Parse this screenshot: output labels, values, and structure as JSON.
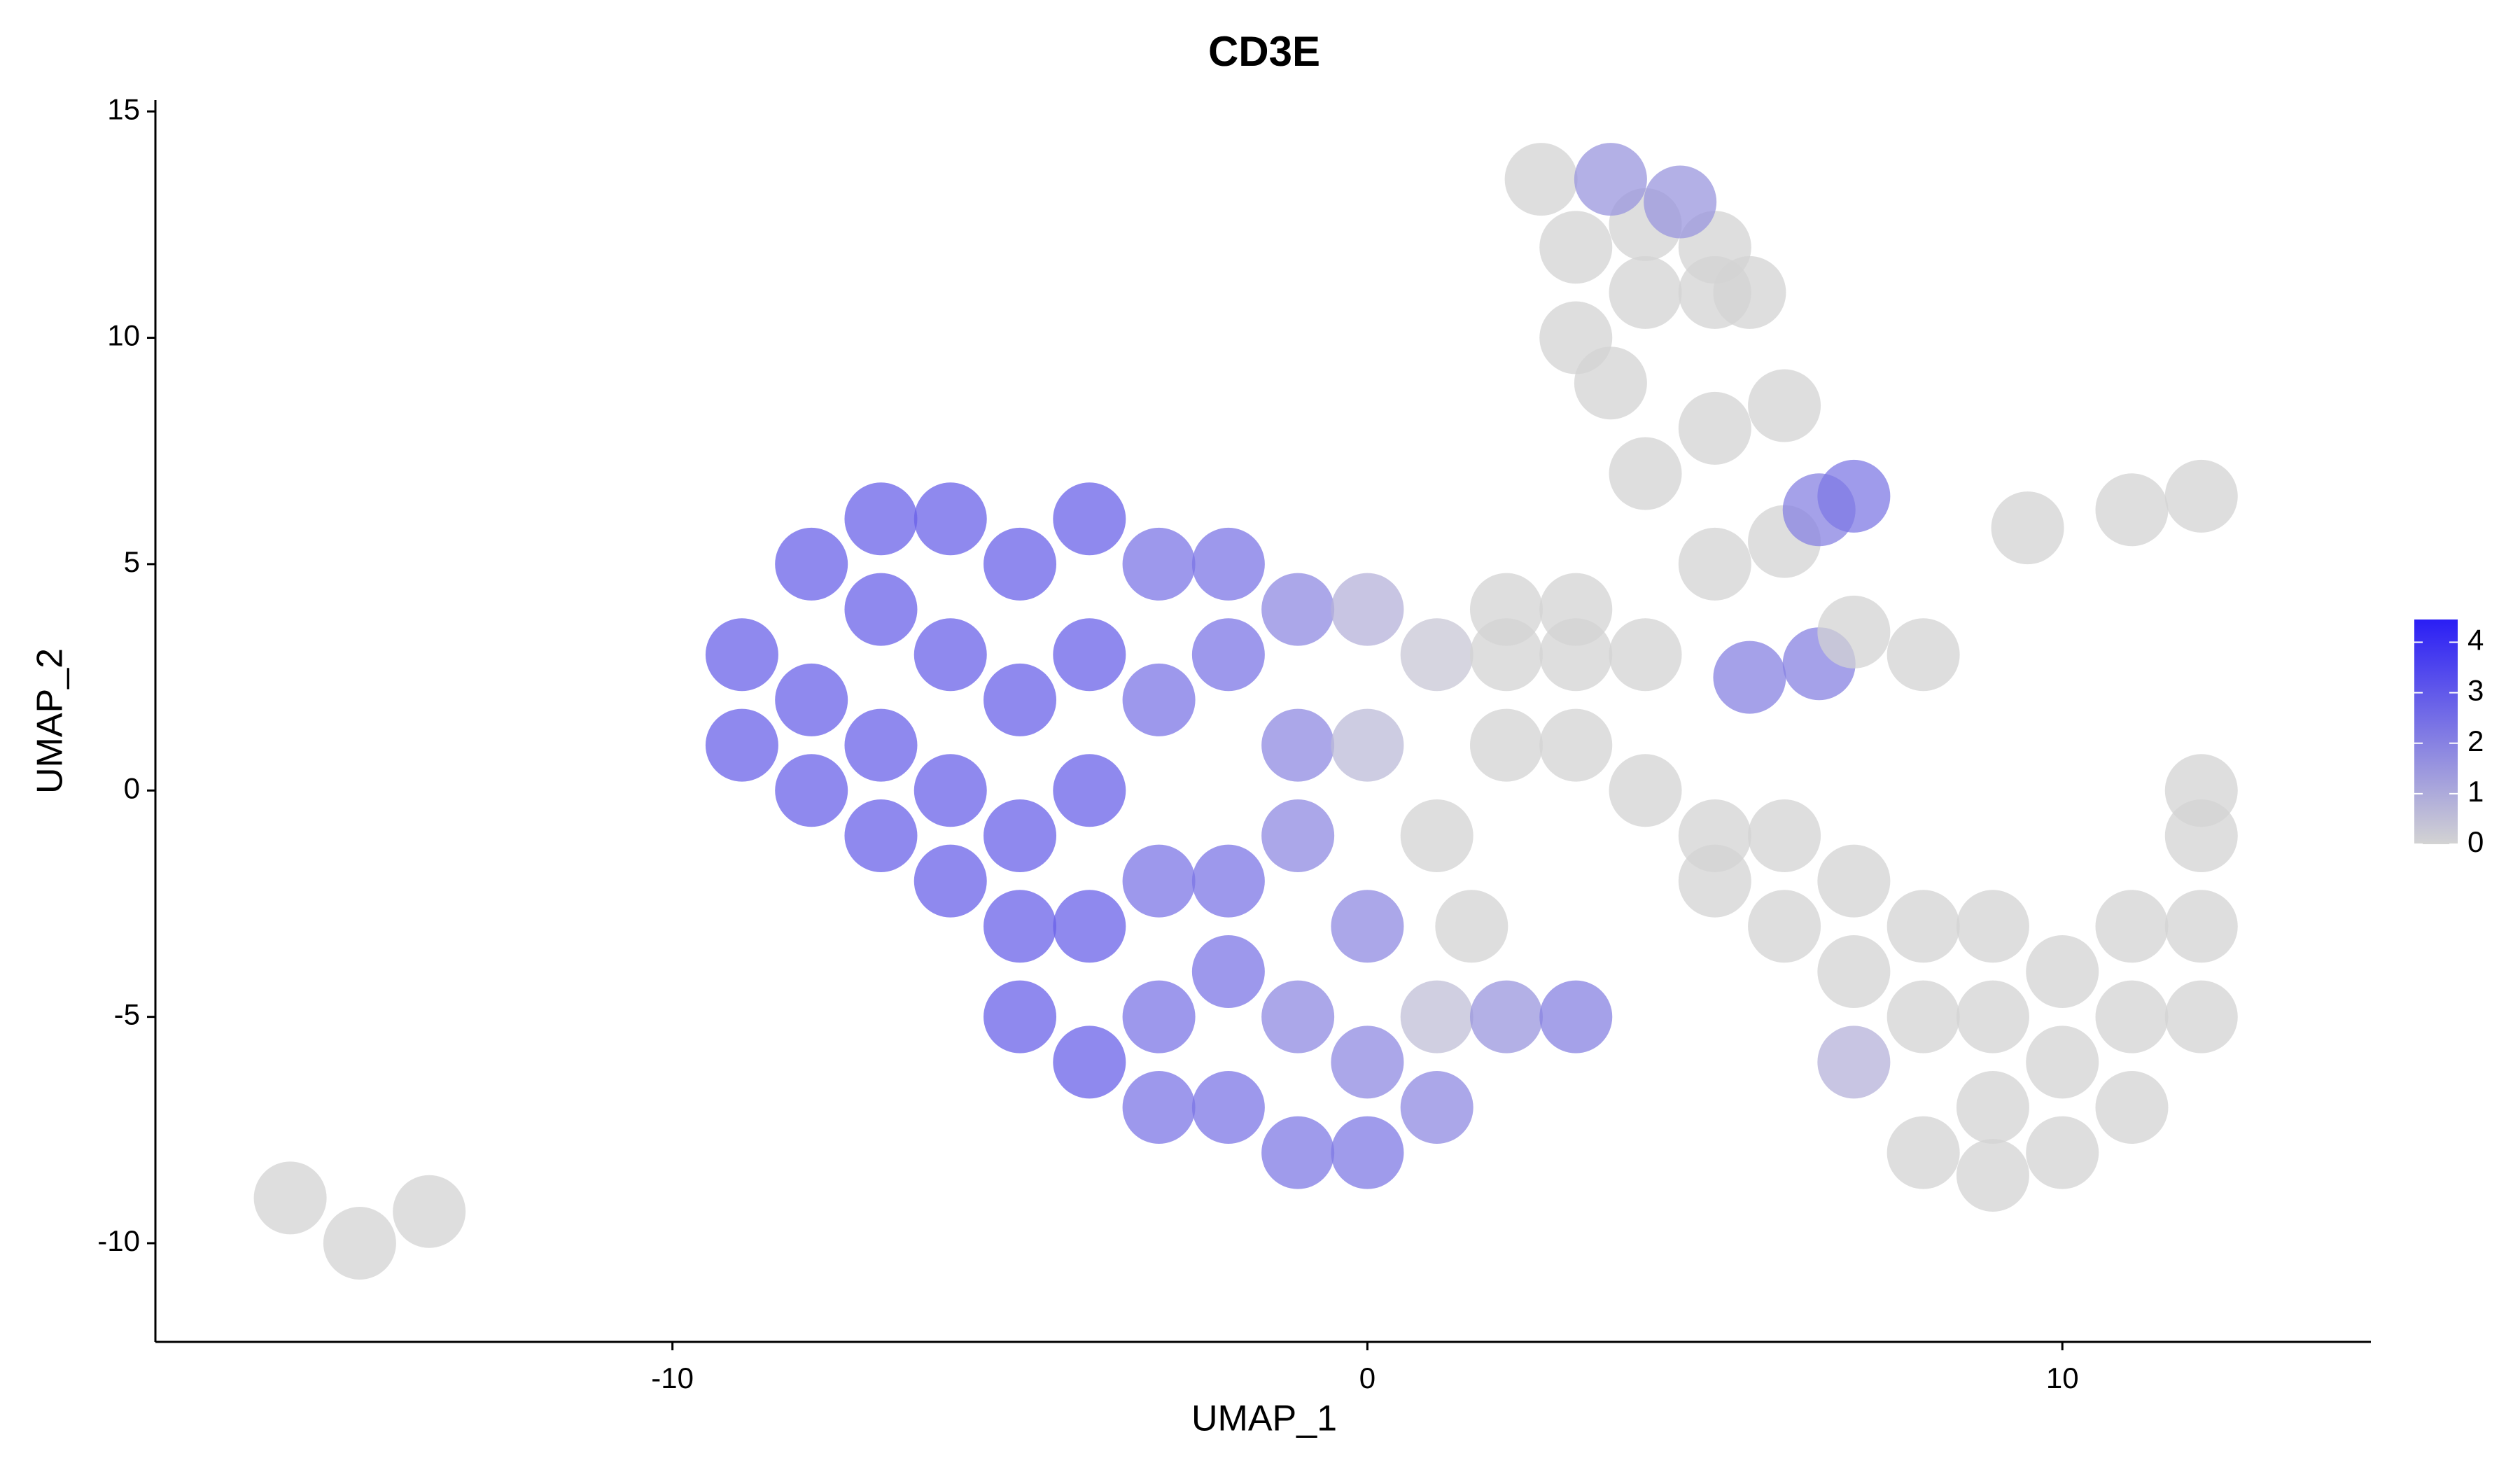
{
  "chart_data": {
    "type": "scatter",
    "title": "CD3E",
    "xlabel": "UMAP_1",
    "ylabel": "UMAP_2",
    "x": [
      -9,
      -9,
      -8,
      -8,
      -8,
      -7,
      -7,
      -7,
      -7,
      -6,
      -6,
      -6,
      -6,
      -5,
      -5,
      -5,
      -5,
      -5,
      -4,
      -4,
      -4,
      -4,
      -4,
      -3,
      -3,
      -3,
      -3,
      -3,
      -2,
      -2,
      -2,
      -2,
      -2,
      -1,
      -1,
      -1,
      -1,
      -1,
      0,
      0,
      0,
      0,
      0,
      1,
      1,
      1,
      1,
      2,
      2,
      3,
      2,
      3,
      3,
      4,
      2,
      3,
      1.5,
      4,
      5,
      5,
      6,
      6,
      7,
      7,
      8,
      8,
      9,
      9,
      9,
      10,
      10,
      10,
      11,
      11,
      11,
      12,
      12,
      12,
      8,
      7,
      9,
      12,
      2.5,
      3,
      3,
      3.5,
      4,
      4,
      5,
      5,
      3.5,
      4.5,
      5.5,
      4,
      5,
      6,
      5,
      6,
      9.5,
      11,
      12,
      6.5,
      7,
      5.5,
      6.5,
      7,
      8,
      -15.5,
      -14.5,
      -13.5
    ],
    "values": [
      1,
      3,
      5,
      2,
      0,
      6,
      4,
      1,
      -1,
      6,
      3,
      0,
      -2,
      5,
      2,
      -1,
      -3,
      -5,
      6,
      3,
      0,
      -3,
      -6,
      5,
      2,
      -2,
      -5,
      -7,
      5,
      3,
      -2,
      -4,
      -7,
      4,
      1,
      -1,
      -5,
      -8,
      4,
      1,
      -3,
      -6,
      -8,
      3,
      -1,
      -5,
      -7,
      3,
      -5,
      -5,
      4,
      4,
      3,
      3,
      1,
      1,
      -3,
      0,
      -1,
      -2,
      -1,
      -3,
      -2,
      -4,
      -3,
      -5,
      -3,
      -5,
      -7,
      -4,
      -6,
      -8,
      -3,
      -5,
      -7,
      -1,
      -3,
      -5,
      -8,
      -6,
      -8.5,
      0,
      13.5,
      12,
      10,
      9,
      12.5,
      11,
      12,
      11,
      13.5,
      13,
      11,
      7,
      8,
      8.5,
      5,
      5.5,
      5.8,
      6.2,
      6.5,
      6.2,
      6.5,
      2.5,
      2.8,
      3.5,
      3,
      -9,
      -10,
      -9.3
    ],
    "expression": [
      2.8,
      2.8,
      2.8,
      2.8,
      2.8,
      2.8,
      2.8,
      2.8,
      2.8,
      2.8,
      2.8,
      2.8,
      2.8,
      2.8,
      2.8,
      2.8,
      2.8,
      2.8,
      2.8,
      2.8,
      2.8,
      2.8,
      2.8,
      2.3,
      2.3,
      2.3,
      2.3,
      2.3,
      2.3,
      2.3,
      2.3,
      2.3,
      2.3,
      1.8,
      1.8,
      1.8,
      1.8,
      2.2,
      0.8,
      0.6,
      1.8,
      1.8,
      2.2,
      0.3,
      0,
      0.5,
      1.8,
      0,
      1.5,
      2,
      0,
      0,
      0,
      0,
      0,
      0,
      0,
      0,
      0,
      0,
      0,
      0,
      0,
      0,
      0,
      0,
      0,
      0,
      0,
      0,
      0,
      0,
      0,
      0,
      0,
      0,
      0,
      0,
      0,
      0.8,
      0,
      0,
      0,
      0,
      0,
      0,
      0,
      0,
      0,
      0,
      1.5,
      1.5,
      0,
      0,
      0,
      0,
      0,
      0,
      0,
      0,
      0,
      2,
      2.2,
      2,
      2,
      0,
      0,
      0,
      0,
      0
    ],
    "xlim": [
      -17.44,
      14.44
    ],
    "ylim": [
      -12.18,
      15.25
    ],
    "xticks": [
      -10,
      0,
      10
    ],
    "yticks": [
      -10,
      -5,
      0,
      5,
      10,
      15
    ],
    "colorbar": {
      "lim": [
        0,
        4.45
      ],
      "ticks": [
        0,
        1,
        2,
        3,
        4
      ],
      "colors": [
        "#d3d3d3",
        "#2a1ef5"
      ]
    }
  }
}
